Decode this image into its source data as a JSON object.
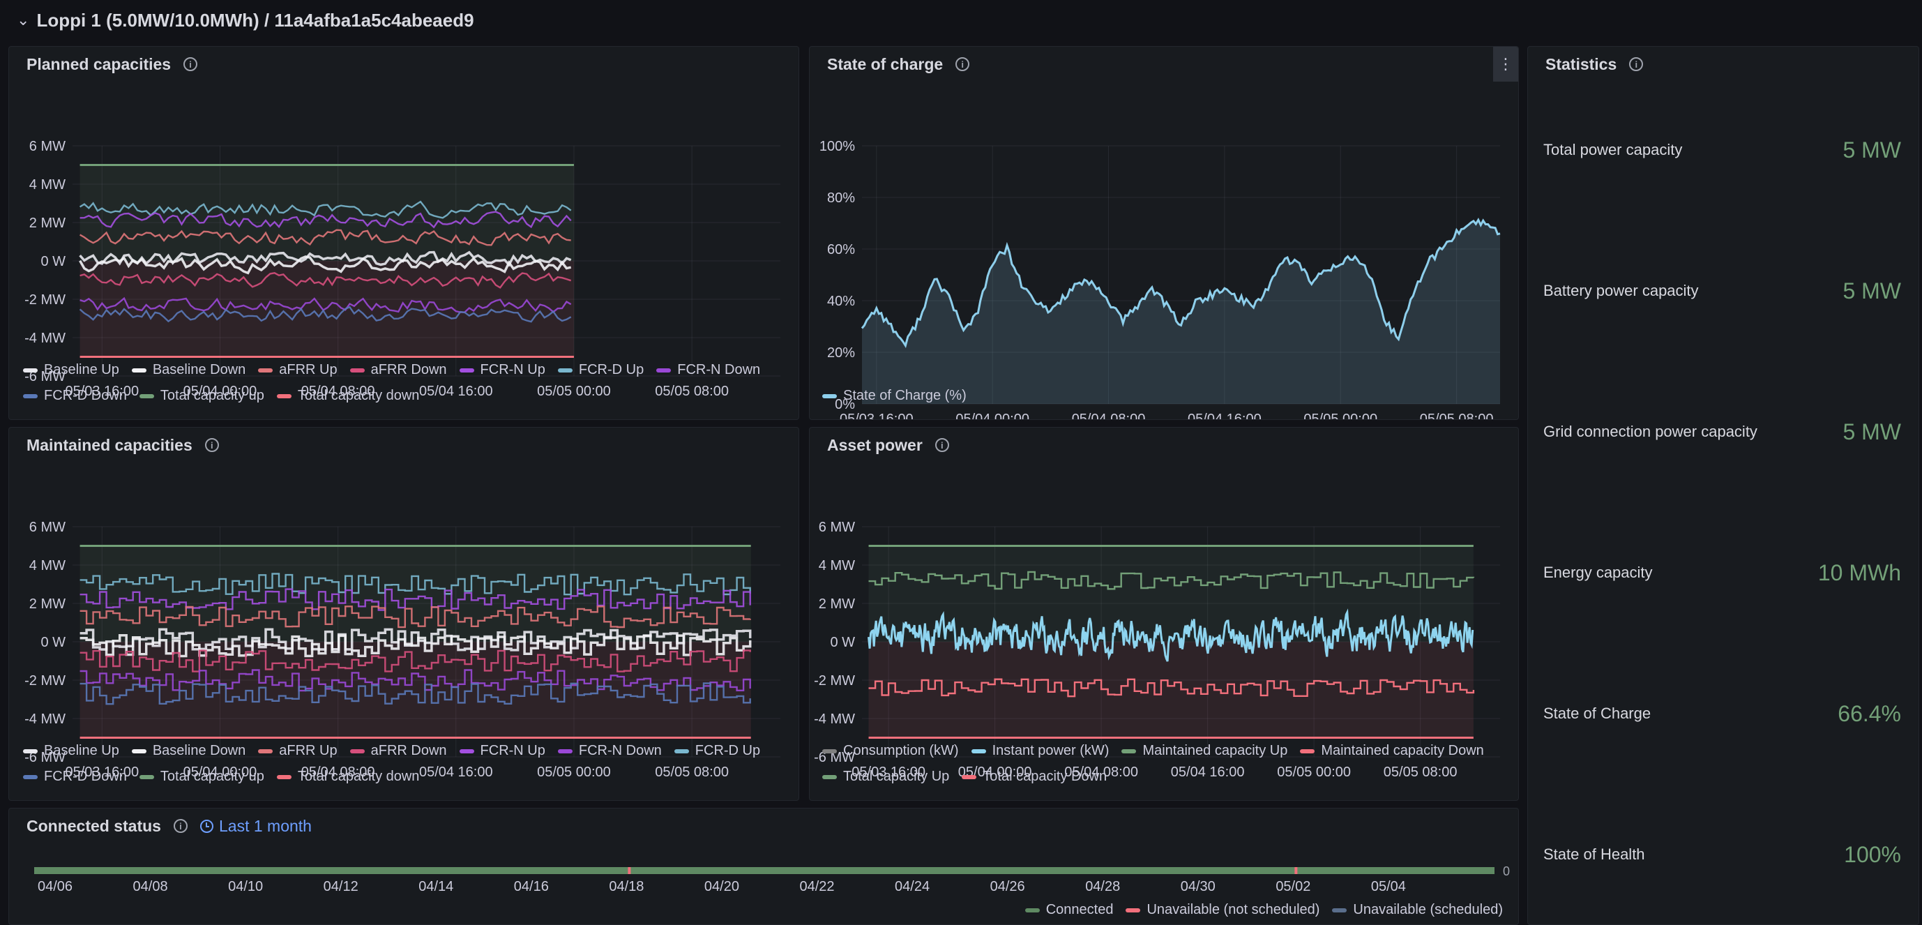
{
  "header": {
    "title": "Loppi 1 (5.0MW/10.0MWh) / 11a4afba1a5c4abeaed9"
  },
  "colors": {
    "baseline_up": "#e8e8ee",
    "baseline_down": "#f2f2f5",
    "afrr_up": "#e0767a",
    "afrr_down": "#d64f7c",
    "fcrn_up": "#a34fe0",
    "fcrd_up": "#7ab7cf",
    "fcrn_down": "#9a48d6",
    "fcrd_down": "#5a79b8",
    "total_up": "#73a078",
    "total_down": "#f2707c",
    "soc": "#8ecfec",
    "consumption": "#808080",
    "instant": "#8ed4ef",
    "connected": "#5f8a63",
    "unavailable_ns": "#f2707c",
    "unavailable_s": "#5a6e8c"
  },
  "planned": {
    "title": "Planned capacities",
    "legend": [
      {
        "label": "Baseline Up",
        "color": "#e8e8ee"
      },
      {
        "label": "Baseline Down",
        "color": "#f2f2f5"
      },
      {
        "label": "aFRR Up",
        "color": "#e0767a"
      },
      {
        "label": "aFRR Down",
        "color": "#d64f7c"
      },
      {
        "label": "FCR-N Up",
        "color": "#a34fe0"
      },
      {
        "label": "FCR-D Up",
        "color": "#7ab7cf"
      },
      {
        "label": "FCR-N Down",
        "color": "#9a48d6"
      },
      {
        "label": "FCR-D Down",
        "color": "#5a79b8"
      },
      {
        "label": "Total capacity up",
        "color": "#73a078"
      },
      {
        "label": "Total capacity down",
        "color": "#f2707c"
      }
    ]
  },
  "soc_panel": {
    "title": "State of charge",
    "legend": [
      {
        "label": "State of Charge (%)",
        "color": "#8ecfec"
      }
    ]
  },
  "maintained": {
    "title": "Maintained capacities",
    "legend": [
      {
        "label": "Baseline Up",
        "color": "#e8e8ee"
      },
      {
        "label": "Baseline Down",
        "color": "#f2f2f5"
      },
      {
        "label": "aFRR Up",
        "color": "#e0767a"
      },
      {
        "label": "aFRR Down",
        "color": "#d64f7c"
      },
      {
        "label": "FCR-N Up",
        "color": "#a34fe0"
      },
      {
        "label": "FCR-N Down",
        "color": "#9a48d6"
      },
      {
        "label": "FCR-D Up",
        "color": "#7ab7cf"
      },
      {
        "label": "FCR-D Down",
        "color": "#5a79b8"
      },
      {
        "label": "Total capacity up",
        "color": "#73a078"
      },
      {
        "label": "Total capacity down",
        "color": "#f2707c"
      }
    ]
  },
  "asset": {
    "title": "Asset power",
    "legend": [
      {
        "label": "Consumption (kW)",
        "color": "#808080"
      },
      {
        "label": "Instant power (kW)",
        "color": "#8ed4ef"
      },
      {
        "label": "Maintained capacity Up",
        "color": "#73a078"
      },
      {
        "label": "Maintained capacity Down",
        "color": "#f2707c"
      },
      {
        "label": "Total capacity Up",
        "color": "#73a078"
      },
      {
        "label": "Total capacity Down",
        "color": "#f2707c"
      }
    ]
  },
  "connected": {
    "title": "Connected status",
    "time_range": "Last 1 month",
    "legend": [
      {
        "label": "Connected",
        "color": "#5f8a63"
      },
      {
        "label": "Unavailable (not scheduled)",
        "color": "#f2707c"
      },
      {
        "label": "Unavailable (scheduled)",
        "color": "#5a6e8c"
      }
    ]
  },
  "statistics": {
    "title": "Statistics",
    "items": [
      {
        "label": "Total power capacity",
        "value": "5 MW"
      },
      {
        "label": "Battery power capacity",
        "value": "5 MW"
      },
      {
        "label": "Grid connection power capacity",
        "value": "5 MW"
      },
      {
        "label": "Energy capacity",
        "value": "10 MWh"
      },
      {
        "label": "State of Charge",
        "value": "66.4%"
      },
      {
        "label": "State of Health",
        "value": "100%"
      }
    ]
  },
  "chart_data": [
    {
      "type": "line",
      "title": "Planned capacities",
      "xlabel": "",
      "ylabel": "",
      "x_ticks": [
        "05/03 16:00",
        "05/04 00:00",
        "05/04 08:00",
        "05/04 16:00",
        "05/05 00:00",
        "05/05 08:00"
      ],
      "y_ticks": [
        "6 MW",
        "4 MW",
        "2 MW",
        "0 W",
        "-2 MW",
        "-4 MW",
        "-6 MW"
      ],
      "ylim": [
        -6,
        6
      ],
      "x_hours": [
        -2,
        46
      ],
      "data_x_range": [
        -1.5,
        32
      ],
      "series": [
        {
          "name": "Total capacity up",
          "constant": 5
        },
        {
          "name": "Total capacity down",
          "constant": -5
        },
        {
          "name": "FCR-D Up",
          "approx_level": 2.7
        },
        {
          "name": "FCR-N Up",
          "approx_level": 2.1
        },
        {
          "name": "aFRR Up",
          "approx_level": 1.2
        },
        {
          "name": "Baseline Up",
          "approx_level": 0.1
        },
        {
          "name": "Baseline Down",
          "approx_level": -0.2
        },
        {
          "name": "aFRR Down",
          "approx_level": -1.0
        },
        {
          "name": "FCR-N Down",
          "approx_level": -2.3
        },
        {
          "name": "FCR-D Down",
          "approx_level": -2.8
        }
      ]
    },
    {
      "type": "area",
      "title": "State of charge",
      "x_ticks": [
        "05/03 16:00",
        "05/04 00:00",
        "05/04 08:00",
        "05/04 16:00",
        "05/05 00:00",
        "05/05 08:00"
      ],
      "y_ticks": [
        "100%",
        "80%",
        "60%",
        "40%",
        "20%",
        "0%"
      ],
      "ylim": [
        0,
        100
      ],
      "x_hours": [
        -1,
        43
      ],
      "series": [
        {
          "name": "State of Charge (%)",
          "x": [
            -1,
            0,
            1,
            2,
            3,
            4,
            5,
            6,
            7,
            8,
            9,
            10,
            11,
            12,
            13,
            14,
            15,
            16,
            17,
            18,
            19,
            20,
            21,
            22,
            23,
            24,
            25,
            26,
            27,
            28,
            29,
            30,
            31,
            32,
            33,
            34,
            35,
            36,
            37,
            38,
            39,
            40,
            41,
            42,
            43
          ],
          "values": [
            30,
            37,
            30,
            23,
            34,
            48,
            42,
            28,
            36,
            55,
            60,
            46,
            39,
            36,
            42,
            47,
            46,
            40,
            32,
            38,
            45,
            38,
            31,
            39,
            42,
            44,
            41,
            38,
            45,
            56,
            55,
            47,
            52,
            55,
            57,
            50,
            32,
            26,
            42,
            55,
            60,
            66,
            71,
            70,
            66
          ]
        }
      ]
    },
    {
      "type": "line",
      "title": "Maintained capacities",
      "x_ticks": [
        "05/03 16:00",
        "05/04 00:00",
        "05/04 08:00",
        "05/04 16:00",
        "05/05 00:00",
        "05/05 08:00"
      ],
      "y_ticks": [
        "6 MW",
        "4 MW",
        "2 MW",
        "0 W",
        "-2 MW",
        "-4 MW",
        "-6 MW"
      ],
      "ylim": [
        -6,
        6
      ],
      "x_hours": [
        -2,
        46
      ],
      "data_x_range": [
        -1.5,
        44
      ],
      "series": [
        {
          "name": "Total capacity up",
          "constant": 5
        },
        {
          "name": "Total capacity down",
          "constant": -5
        },
        {
          "name": "FCR-D Up",
          "approx_level": 3.0
        },
        {
          "name": "FCR-N Up",
          "approx_level": 2.2
        },
        {
          "name": "aFRR Up",
          "approx_level": 1.3
        },
        {
          "name": "Baseline Up",
          "approx_level": 0.1
        },
        {
          "name": "Baseline Down",
          "approx_level": -0.2
        },
        {
          "name": "aFRR Down",
          "approx_level": -1.0
        },
        {
          "name": "FCR-N Down",
          "approx_level": -2.0
        },
        {
          "name": "FCR-D Down",
          "approx_level": -2.7
        }
      ]
    },
    {
      "type": "line",
      "title": "Asset power",
      "x_ticks": [
        "05/03 16:00",
        "05/04 00:00",
        "05/04 08:00",
        "05/04 16:00",
        "05/05 00:00",
        "05/05 08:00"
      ],
      "y_ticks": [
        "6 MW",
        "4 MW",
        "2 MW",
        "0 W",
        "-2 MW",
        "-4 MW",
        "-6 MW"
      ],
      "ylim": [
        -6,
        6
      ],
      "x_hours": [
        -2,
        46
      ],
      "data_x_range": [
        -1.5,
        44
      ],
      "series": [
        {
          "name": "Total capacity Up",
          "constant": 5
        },
        {
          "name": "Total capacity Down",
          "constant": -5
        },
        {
          "name": "Maintained capacity Up",
          "approx_level": 3.2
        },
        {
          "name": "Instant power (kW)",
          "approx_level": 0.3
        },
        {
          "name": "Maintained capacity Down",
          "approx_level": -2.4
        }
      ]
    },
    {
      "type": "bar",
      "title": "Connected status",
      "x_ticks": [
        "04/06",
        "04/08",
        "04/10",
        "04/12",
        "04/14",
        "04/16",
        "04/18",
        "04/20",
        "04/22",
        "04/24",
        "04/26",
        "04/28",
        "04/30",
        "05/02",
        "05/04"
      ],
      "y_tick": "0",
      "state": "Connected",
      "unavailable_not_scheduled_dates": [
        "04/18",
        "05/02"
      ]
    }
  ]
}
